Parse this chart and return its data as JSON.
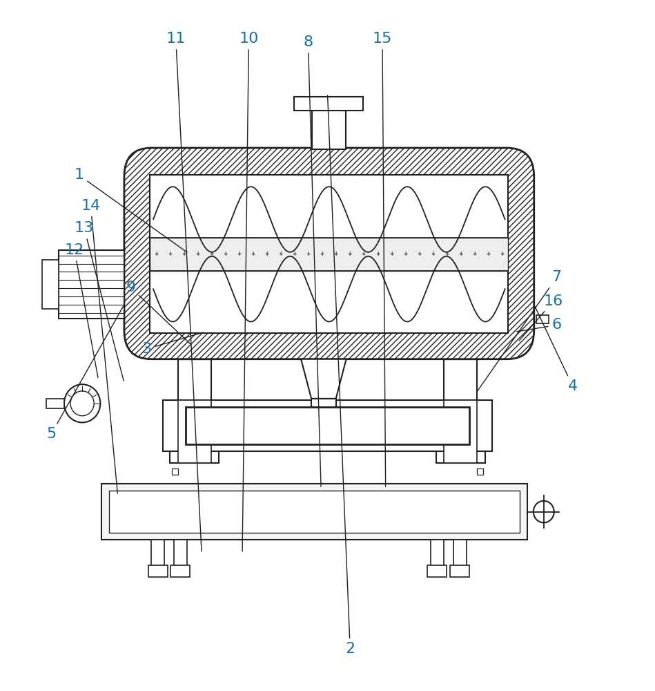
{
  "background_color": "#ffffff",
  "line_color": "#231f20",
  "label_color": "#1a6ea8",
  "label_fontsize": 16,
  "labels_info": [
    [
      1,
      0.285,
      0.635,
      0.115,
      0.75
    ],
    [
      2,
      0.5,
      0.87,
      0.535,
      0.055
    ],
    [
      3,
      0.31,
      0.52,
      0.22,
      0.495
    ],
    [
      4,
      0.82,
      0.56,
      0.88,
      0.44
    ],
    [
      5,
      0.185,
      0.56,
      0.072,
      0.37
    ],
    [
      6,
      0.79,
      0.52,
      0.855,
      0.53
    ],
    [
      7,
      0.73,
      0.43,
      0.855,
      0.6
    ],
    [
      8,
      0.49,
      0.29,
      0.47,
      0.945
    ],
    [
      9,
      0.29,
      0.5,
      0.195,
      0.585
    ],
    [
      10,
      0.368,
      0.195,
      0.378,
      0.95
    ],
    [
      11,
      0.305,
      0.195,
      0.265,
      0.95
    ],
    [
      12,
      0.145,
      0.45,
      0.108,
      0.64
    ],
    [
      13,
      0.185,
      0.445,
      0.123,
      0.672
    ],
    [
      14,
      0.175,
      0.28,
      0.133,
      0.705
    ],
    [
      15,
      0.59,
      0.29,
      0.585,
      0.95
    ],
    [
      16,
      0.795,
      0.505,
      0.85,
      0.565
    ]
  ]
}
